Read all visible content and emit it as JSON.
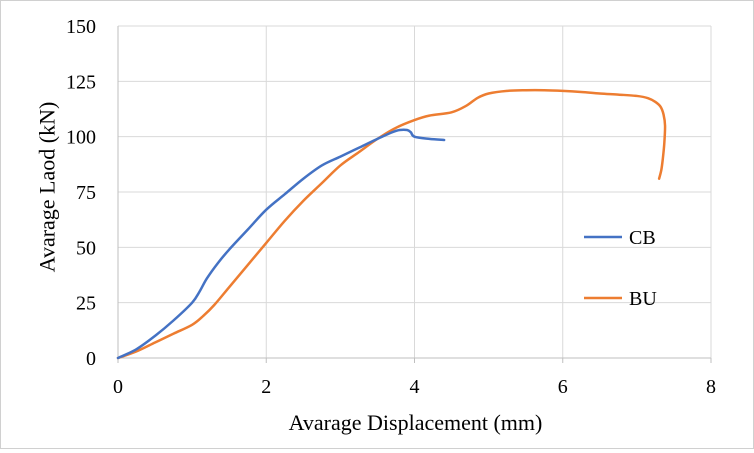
{
  "chart_data": {
    "type": "line",
    "title": "",
    "xlabel": "Avarage Displacement (mm)",
    "ylabel": "Avarage Laod (kN)",
    "xlim": [
      0,
      8
    ],
    "ylim": [
      0,
      150
    ],
    "xticks": [
      0,
      2,
      4,
      6,
      8
    ],
    "yticks": [
      0,
      25,
      50,
      75,
      100,
      125,
      150
    ],
    "grid": true,
    "legend_position": "right",
    "series": [
      {
        "name": "CB",
        "color": "#4472C4",
        "x": [
          0,
          0.25,
          0.5,
          0.75,
          1.0,
          1.1,
          1.2,
          1.35,
          1.5,
          1.75,
          2.0,
          2.25,
          2.5,
          2.75,
          3.0,
          3.25,
          3.5,
          3.7,
          3.8,
          3.9,
          3.95,
          4.0,
          4.2,
          4.4
        ],
        "y": [
          0,
          4,
          10,
          17,
          25,
          30,
          36,
          43,
          49,
          58,
          67,
          74,
          81,
          87,
          91,
          95,
          99,
          102,
          103,
          103,
          102,
          100,
          99,
          98.5
        ]
      },
      {
        "name": "BU",
        "color": "#ED7D31",
        "x": [
          0,
          0.25,
          0.5,
          0.75,
          1.0,
          1.15,
          1.3,
          1.5,
          1.75,
          2.0,
          2.25,
          2.5,
          2.75,
          3.0,
          3.25,
          3.5,
          3.75,
          4.0,
          4.2,
          4.5,
          4.7,
          4.85,
          5.0,
          5.25,
          5.5,
          5.75,
          6.0,
          6.25,
          6.5,
          6.75,
          7.0,
          7.15,
          7.25,
          7.32,
          7.36,
          7.38,
          7.37,
          7.35,
          7.33,
          7.3
        ],
        "y": [
          0,
          3,
          7,
          11,
          15,
          19,
          24,
          32,
          42,
          52,
          62,
          71,
          79,
          87,
          93,
          99,
          104,
          107.5,
          109.5,
          111,
          114,
          117.5,
          119.5,
          120.7,
          121,
          121,
          120.7,
          120.2,
          119.5,
          119,
          118.4,
          117.4,
          115.7,
          113.5,
          110,
          105,
          97,
          90,
          85,
          81
        ]
      }
    ]
  }
}
